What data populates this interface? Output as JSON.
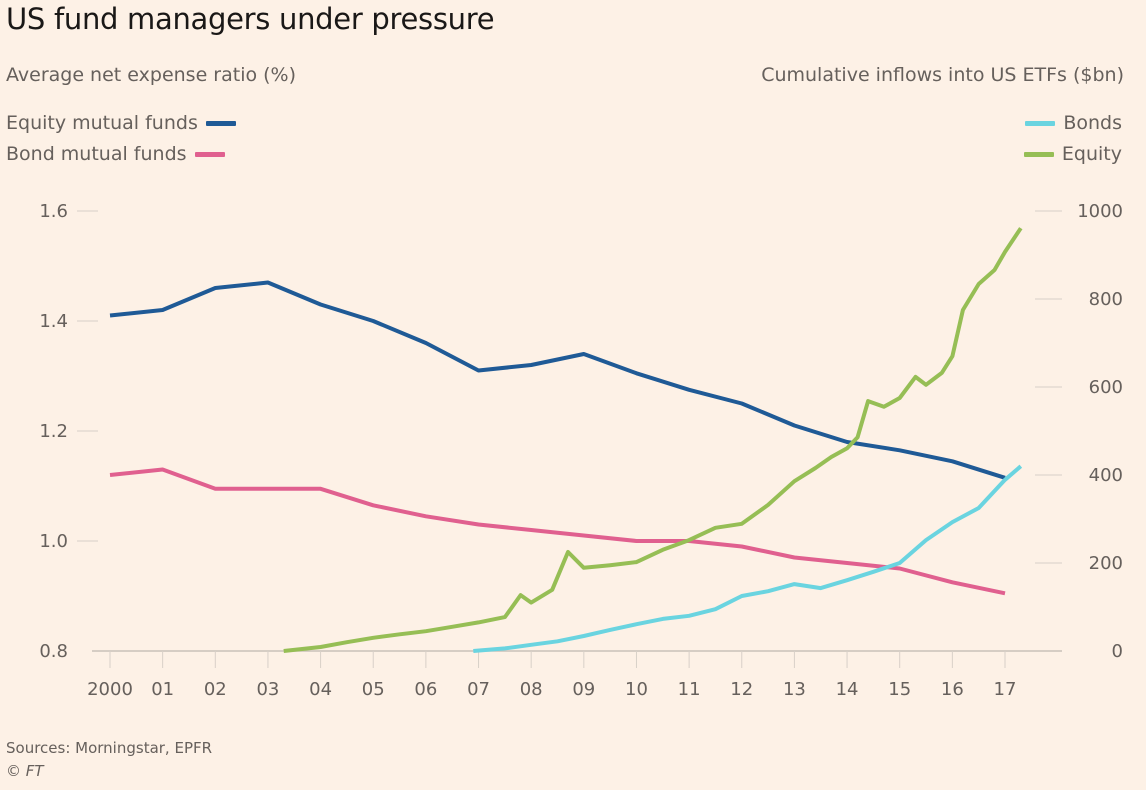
{
  "title": "US fund managers under pressure",
  "left_axis_title": "Average net expense ratio (%)",
  "right_axis_title": "Cumulative inflows into US ETFs ($bn)",
  "legend_left": [
    {
      "label": "Equity mutual funds",
      "color": "#1f5a96"
    },
    {
      "label": "Bond mutual funds",
      "color": "#e0608f"
    }
  ],
  "legend_right": [
    {
      "label": "Bonds",
      "color": "#6ad4e0"
    },
    {
      "label": "Equity",
      "color": "#96be55"
    }
  ],
  "source": "Sources: Morningstar, EPFR",
  "copyright": "© FT",
  "chart_data": {
    "type": "line",
    "title": "US fund managers under pressure",
    "xlabel": "",
    "x_ticks": [
      2000,
      2001,
      2002,
      2003,
      2004,
      2005,
      2006,
      2007,
      2008,
      2009,
      2010,
      2011,
      2012,
      2013,
      2014,
      2015,
      2016,
      2017
    ],
    "x_tick_labels": [
      "2000",
      "01",
      "02",
      "03",
      "04",
      "05",
      "06",
      "07",
      "08",
      "09",
      "10",
      "11",
      "12",
      "13",
      "14",
      "15",
      "16",
      "17"
    ],
    "xlim": [
      1999.85,
      2018.1
    ],
    "grid": false,
    "left_axis": {
      "label": "Average net expense ratio (%)",
      "ylim": [
        0.8,
        1.6
      ],
      "ticks": [
        0.8,
        1.0,
        1.2,
        1.4,
        1.6
      ],
      "tick_labels": [
        "0.8",
        "1.0",
        "1.2",
        "1.4",
        "1.6"
      ]
    },
    "right_axis": {
      "label": "Cumulative inflows into US ETFs ($bn)",
      "ylim": [
        0,
        1000
      ],
      "ticks": [
        0,
        200,
        400,
        600,
        800,
        1000
      ],
      "tick_labels": [
        "0",
        "200",
        "400",
        "600",
        "800",
        "1000"
      ]
    },
    "series": [
      {
        "name": "Equity mutual funds",
        "axis": "left",
        "color": "#1f5a96",
        "x": [
          2000,
          2001,
          2002,
          2003,
          2004,
          2005,
          2006,
          2007,
          2008,
          2009,
          2010,
          2011,
          2012,
          2013,
          2014,
          2015,
          2016,
          2017
        ],
        "y": [
          1.41,
          1.42,
          1.46,
          1.47,
          1.43,
          1.4,
          1.36,
          1.31,
          1.32,
          1.34,
          1.305,
          1.275,
          1.25,
          1.21,
          1.18,
          1.165,
          1.145,
          1.115
        ]
      },
      {
        "name": "Bond mutual funds",
        "axis": "left",
        "color": "#e0608f",
        "x": [
          2000,
          2001,
          2002,
          2003,
          2004,
          2005,
          2006,
          2007,
          2008,
          2009,
          2010,
          2011,
          2012,
          2013,
          2014,
          2015,
          2016,
          2017
        ],
        "y": [
          1.12,
          1.13,
          1.095,
          1.095,
          1.095,
          1.065,
          1.045,
          1.03,
          1.02,
          1.01,
          1.0,
          1.0,
          0.99,
          0.97,
          0.96,
          0.95,
          0.925,
          0.905
        ]
      },
      {
        "name": "Bonds",
        "axis": "right",
        "color": "#6ad4e0",
        "x": [
          2006.9,
          2007.5,
          2008,
          2008.5,
          2009,
          2009.5,
          2010,
          2010.5,
          2011,
          2011.5,
          2012,
          2012.5,
          2013,
          2013.5,
          2014,
          2014.5,
          2015,
          2015.5,
          2016,
          2016.5,
          2017,
          2017.3
        ],
        "y": [
          0,
          6,
          14,
          22,
          34,
          48,
          61,
          73,
          80,
          95,
          125,
          136,
          152,
          143,
          161,
          180,
          200,
          252,
          293,
          325,
          389,
          420
        ]
      },
      {
        "name": "Equity",
        "axis": "right",
        "color": "#96be55",
        "x": [
          2003.3,
          2004,
          2004.5,
          2005,
          2005.5,
          2006,
          2006.5,
          2007,
          2007.5,
          2007.8,
          2008,
          2008.4,
          2008.7,
          2009,
          2009.5,
          2010,
          2010.5,
          2011,
          2011.5,
          2012,
          2012.5,
          2013,
          2013.4,
          2013.7,
          2014,
          2014.2,
          2014.4,
          2014.7,
          2015,
          2015.3,
          2015.5,
          2015.8,
          2016,
          2016.2,
          2016.5,
          2016.8,
          2017,
          2017.3
        ],
        "y": [
          0,
          9,
          20,
          30,
          38,
          45,
          55,
          65,
          77,
          127,
          110,
          139,
          225,
          189,
          195,
          202,
          230,
          252,
          280,
          289,
          332,
          386,
          416,
          441,
          461,
          486,
          568,
          555,
          575,
          623,
          605,
          632,
          670,
          775,
          834,
          866,
          907,
          961
        ]
      }
    ]
  }
}
